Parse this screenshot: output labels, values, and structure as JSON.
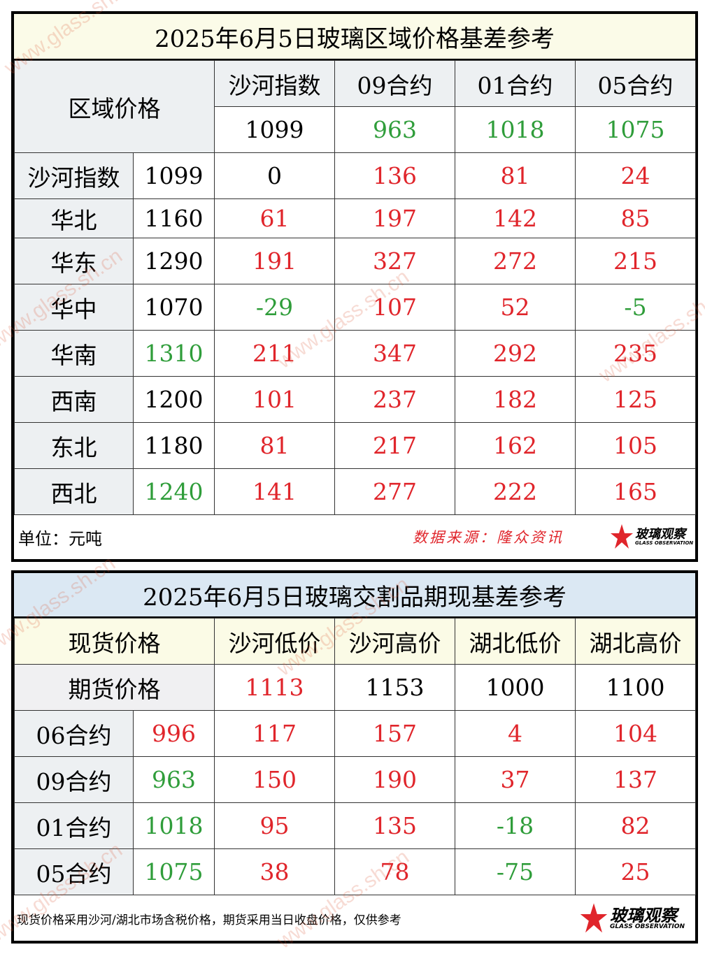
{
  "table1": {
    "title": "2025年6月5日玻璃区域价格基差参考",
    "corner_label": "区域价格",
    "column_headers": [
      "沙河指数",
      "09合约",
      "01合约",
      "05合约"
    ],
    "header_values": [
      {
        "v": "1099",
        "c": "black"
      },
      {
        "v": "963",
        "c": "green"
      },
      {
        "v": "1018",
        "c": "green"
      },
      {
        "v": "1075",
        "c": "green"
      }
    ],
    "rows": [
      {
        "region": "沙河指数",
        "price": "1099",
        "pc": "black",
        "vals": [
          {
            "v": "0",
            "c": "black"
          },
          {
            "v": "136",
            "c": "red"
          },
          {
            "v": "81",
            "c": "red"
          },
          {
            "v": "24",
            "c": "red"
          }
        ]
      },
      {
        "region": "华北",
        "price": "1160",
        "pc": "black",
        "vals": [
          {
            "v": "61",
            "c": "red"
          },
          {
            "v": "197",
            "c": "red"
          },
          {
            "v": "142",
            "c": "red"
          },
          {
            "v": "85",
            "c": "red"
          }
        ]
      },
      {
        "region": "华东",
        "price": "1290",
        "pc": "black",
        "vals": [
          {
            "v": "191",
            "c": "red"
          },
          {
            "v": "327",
            "c": "red"
          },
          {
            "v": "272",
            "c": "red"
          },
          {
            "v": "215",
            "c": "red"
          }
        ]
      },
      {
        "region": "华中",
        "price": "1070",
        "pc": "black",
        "vals": [
          {
            "v": "-29",
            "c": "green"
          },
          {
            "v": "107",
            "c": "red"
          },
          {
            "v": "52",
            "c": "red"
          },
          {
            "v": "-5",
            "c": "green"
          }
        ]
      },
      {
        "region": "华南",
        "price": "1310",
        "pc": "green",
        "vals": [
          {
            "v": "211",
            "c": "red"
          },
          {
            "v": "347",
            "c": "red"
          },
          {
            "v": "292",
            "c": "red"
          },
          {
            "v": "235",
            "c": "red"
          }
        ]
      },
      {
        "region": "西南",
        "price": "1200",
        "pc": "black",
        "vals": [
          {
            "v": "101",
            "c": "red"
          },
          {
            "v": "237",
            "c": "red"
          },
          {
            "v": "182",
            "c": "red"
          },
          {
            "v": "125",
            "c": "red"
          }
        ]
      },
      {
        "region": "东北",
        "price": "1180",
        "pc": "black",
        "vals": [
          {
            "v": "81",
            "c": "red"
          },
          {
            "v": "217",
            "c": "red"
          },
          {
            "v": "162",
            "c": "red"
          },
          {
            "v": "105",
            "c": "red"
          }
        ]
      },
      {
        "region": "西北",
        "price": "1240",
        "pc": "green",
        "vals": [
          {
            "v": "141",
            "c": "red"
          },
          {
            "v": "277",
            "c": "red"
          },
          {
            "v": "222",
            "c": "red"
          },
          {
            "v": "165",
            "c": "red"
          }
        ]
      }
    ],
    "unit": "单位：元吨",
    "source": "数据来源：隆众资讯"
  },
  "table2": {
    "title": "2025年6月5日玻璃交割品期现基差参考",
    "corner_label_1": "现货价格",
    "corner_label_2": "期货价格",
    "column_headers": [
      "沙河低价",
      "沙河高价",
      "湖北低价",
      "湖北高价"
    ],
    "spot_values": [
      {
        "v": "1113",
        "c": "red"
      },
      {
        "v": "1153",
        "c": "black"
      },
      {
        "v": "1000",
        "c": "black"
      },
      {
        "v": "1100",
        "c": "black"
      }
    ],
    "rows": [
      {
        "contract": "06合约",
        "price": "996",
        "pc": "red",
        "vals": [
          {
            "v": "117",
            "c": "red"
          },
          {
            "v": "157",
            "c": "red"
          },
          {
            "v": "4",
            "c": "red"
          },
          {
            "v": "104",
            "c": "red"
          }
        ]
      },
      {
        "contract": "09合约",
        "price": "963",
        "pc": "green",
        "vals": [
          {
            "v": "150",
            "c": "red"
          },
          {
            "v": "190",
            "c": "red"
          },
          {
            "v": "37",
            "c": "red"
          },
          {
            "v": "137",
            "c": "red"
          }
        ]
      },
      {
        "contract": "01合约",
        "price": "1018",
        "pc": "green",
        "vals": [
          {
            "v": "95",
            "c": "red"
          },
          {
            "v": "135",
            "c": "red"
          },
          {
            "v": "-18",
            "c": "green"
          },
          {
            "v": "82",
            "c": "red"
          }
        ]
      },
      {
        "contract": "05合约",
        "price": "1075",
        "pc": "green",
        "vals": [
          {
            "v": "38",
            "c": "red"
          },
          {
            "v": "78",
            "c": "red"
          },
          {
            "v": "-75",
            "c": "green"
          },
          {
            "v": "25",
            "c": "red"
          }
        ]
      }
    ],
    "note": "现货价格采用沙河/湖北市场含税价格，期货采用当日收盘价格，仅供参考"
  },
  "logo": {
    "cn": "玻璃观察",
    "en": "GLASS OBSERVATION"
  },
  "watermark": "www.glass.sh.cn",
  "colors": {
    "red": "#e0252b",
    "green": "#2f9d3a",
    "title1_bg": "#fbfbe8",
    "title2_bg": "#dbe8f3"
  }
}
